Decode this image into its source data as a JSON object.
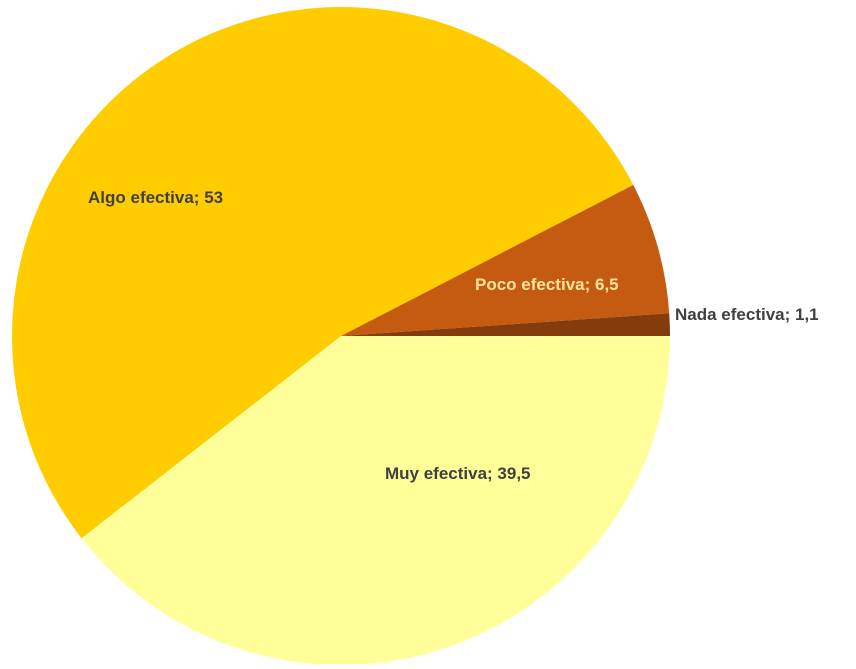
{
  "chart_data": {
    "type": "pie",
    "title": "",
    "slices": [
      {
        "label": "Muy efectiva",
        "value": 39.5,
        "display": "Muy efectiva; 39,5",
        "color": "#FFFF99",
        "label_color": "#404040"
      },
      {
        "label": "Algo efectiva",
        "value": 53,
        "display": "Algo efectiva; 53",
        "color": "#FFCC00",
        "label_color": "#404040"
      },
      {
        "label": "Poco efectiva",
        "value": 6.5,
        "display": "Poco efectiva; 6,5",
        "color": "#C55A11",
        "label_color": "#FFE699"
      },
      {
        "label": "Nada efectiva",
        "value": 1.1,
        "display": "Nada efectiva; 1,1",
        "color": "#843C0C",
        "label_color": "#404040"
      }
    ],
    "legend": "none",
    "start_angle_deg": 0,
    "direction": "clockwise"
  }
}
